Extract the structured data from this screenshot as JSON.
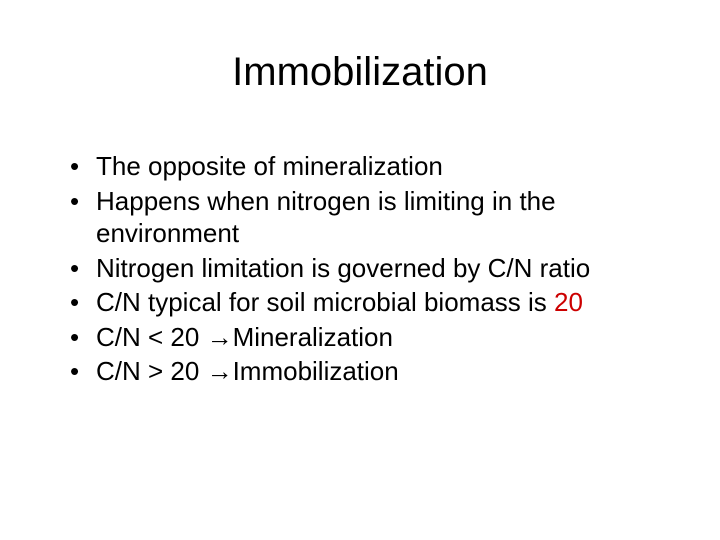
{
  "colors": {
    "text": "#000000",
    "background": "#ffffff",
    "accent_red": "#cc0000"
  },
  "typography": {
    "title_fontsize": 40,
    "body_fontsize": 26,
    "font_family": "Arial"
  },
  "title": "Immobilization",
  "bullets": [
    {
      "text": "The opposite of mineralization"
    },
    {
      "text": "Happens when nitrogen is limiting in the environment"
    },
    {
      "text": "Nitrogen limitation is governed by C/N ratio"
    },
    {
      "prefix": "C/N typical for soil microbial biomass is ",
      "accent": "20",
      "suffix": ""
    },
    {
      "prefix": "C/N < 20 ",
      "arrow": "→",
      "suffix": "Mineralization"
    },
    {
      "prefix": "C/N > 20 ",
      "arrow": "→",
      "suffix": "Immobilization"
    }
  ]
}
